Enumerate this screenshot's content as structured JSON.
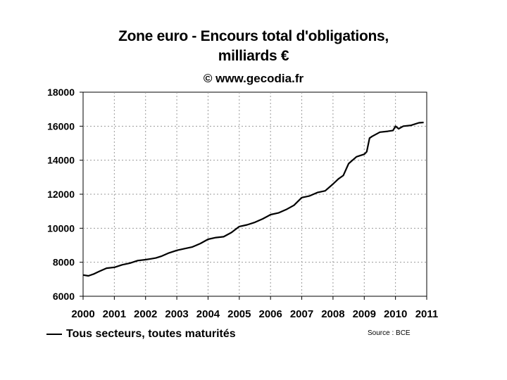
{
  "chart_data": {
    "type": "line",
    "title_line1": "Zone euro - Encours total d'obligations,",
    "title_line2": "milliards €",
    "credit": "© www.gecodia.fr",
    "source": "Source : BCE",
    "xlabel": "",
    "ylabel": "",
    "xlim": [
      2000,
      2011
    ],
    "ylim": [
      6000,
      18000
    ],
    "x_ticks": [
      "2000",
      "2001",
      "2002",
      "2003",
      "2004",
      "2005",
      "2006",
      "2007",
      "2008",
      "2009",
      "2010",
      "2011"
    ],
    "y_ticks": [
      "6000",
      "8000",
      "10000",
      "12000",
      "14000",
      "16000",
      "18000"
    ],
    "grid": true,
    "legend_position": "bottom-left",
    "series": [
      {
        "name": "Tous secteurs, toutes maturités",
        "color": "#000000",
        "x": [
          2000.0,
          2000.17,
          2000.33,
          2000.5,
          2000.75,
          2001.0,
          2001.25,
          2001.5,
          2001.75,
          2002.0,
          2002.17,
          2002.33,
          2002.5,
          2002.75,
          2003.0,
          2003.25,
          2003.5,
          2003.75,
          2004.0,
          2004.25,
          2004.5,
          2004.75,
          2005.0,
          2005.25,
          2005.5,
          2005.75,
          2006.0,
          2006.25,
          2006.5,
          2006.75,
          2007.0,
          2007.25,
          2007.5,
          2007.75,
          2008.0,
          2008.17,
          2008.33,
          2008.5,
          2008.75,
          2009.0,
          2009.08,
          2009.17,
          2009.25,
          2009.5,
          2009.75,
          2009.92,
          2010.0,
          2010.1,
          2010.25,
          2010.5,
          2010.75,
          2010.9
        ],
        "values": [
          7250,
          7200,
          7300,
          7450,
          7650,
          7700,
          7850,
          7950,
          8100,
          8150,
          8200,
          8250,
          8350,
          8550,
          8700,
          8800,
          8900,
          9100,
          9350,
          9450,
          9500,
          9750,
          10100,
          10200,
          10350,
          10550,
          10800,
          10900,
          11100,
          11350,
          11800,
          11900,
          12100,
          12200,
          12600,
          12900,
          13100,
          13800,
          14200,
          14350,
          14500,
          15300,
          15400,
          15650,
          15700,
          15750,
          16000,
          15850,
          16000,
          16050,
          16200,
          16220
        ]
      }
    ]
  }
}
